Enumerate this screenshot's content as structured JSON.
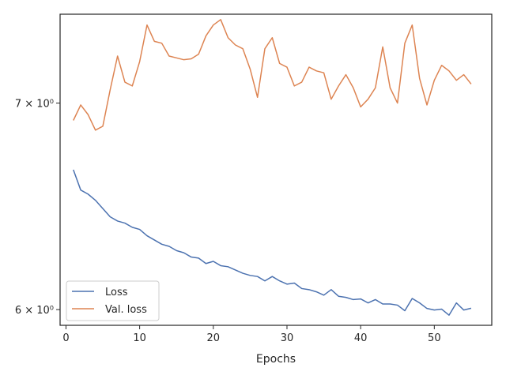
{
  "chart_data": {
    "type": "line",
    "title": "",
    "xlabel": "Epochs",
    "ylabel": "",
    "y_scale": "log",
    "xlim": [
      -0.8,
      57.8
    ],
    "ylim": [
      5.93,
      7.48
    ],
    "x_ticks": [
      0,
      10,
      20,
      30,
      40,
      50
    ],
    "x_tick_labels": [
      "0",
      "10",
      "20",
      "30",
      "40",
      "50"
    ],
    "y_ticks": [
      6,
      7
    ],
    "y_tick_labels": [
      "6 × 10⁰",
      "7 × 10⁰"
    ],
    "legend_position": "lower-left",
    "grid": false,
    "x": [
      1,
      2,
      3,
      4,
      5,
      6,
      7,
      8,
      9,
      10,
      11,
      12,
      13,
      14,
      15,
      16,
      17,
      18,
      19,
      20,
      21,
      22,
      23,
      24,
      25,
      26,
      27,
      28,
      29,
      30,
      31,
      32,
      33,
      34,
      35,
      36,
      37,
      38,
      39,
      40,
      41,
      42,
      43,
      44,
      45,
      46,
      47,
      48,
      49,
      50,
      51,
      52,
      53,
      54,
      55
    ],
    "series": [
      {
        "name": "Loss",
        "color": "#4c72b0",
        "values": [
          6.66,
          6.56,
          6.54,
          6.51,
          6.47,
          6.43,
          6.41,
          6.4,
          6.38,
          6.37,
          6.34,
          6.32,
          6.3,
          6.29,
          6.27,
          6.26,
          6.24,
          6.235,
          6.21,
          6.22,
          6.2,
          6.195,
          6.18,
          6.165,
          6.155,
          6.15,
          6.13,
          6.15,
          6.13,
          6.115,
          6.12,
          6.095,
          6.09,
          6.08,
          6.065,
          6.09,
          6.06,
          6.055,
          6.045,
          6.048,
          6.03,
          6.045,
          6.025,
          6.025,
          6.02,
          5.995,
          6.05,
          6.03,
          6.005,
          5.998,
          6.002,
          5.975,
          6.03,
          5.998,
          6.006
        ]
      },
      {
        "name": "Val. loss",
        "color": "#dd8452",
        "values": [
          6.91,
          6.99,
          6.94,
          6.86,
          6.88,
          7.07,
          7.25,
          7.11,
          7.09,
          7.22,
          7.42,
          7.33,
          7.32,
          7.25,
          7.24,
          7.23,
          7.235,
          7.26,
          7.36,
          7.42,
          7.45,
          7.35,
          7.31,
          7.29,
          7.18,
          7.03,
          7.29,
          7.35,
          7.21,
          7.19,
          7.09,
          7.11,
          7.19,
          7.17,
          7.16,
          7.02,
          7.09,
          7.15,
          7.08,
          6.98,
          7.02,
          7.08,
          7.3,
          7.08,
          7.0,
          7.32,
          7.42,
          7.13,
          6.99,
          7.12,
          7.2,
          7.17,
          7.12,
          7.15,
          7.1
        ]
      }
    ]
  }
}
